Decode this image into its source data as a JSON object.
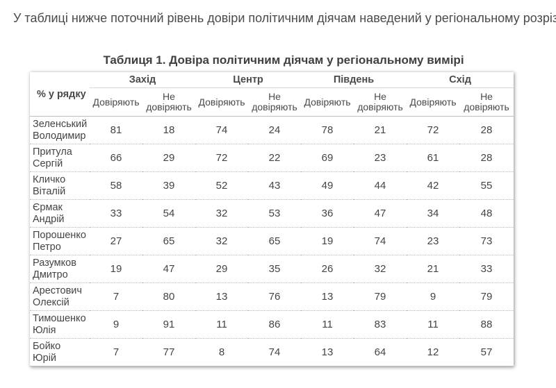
{
  "intro_text": "У таблиці нижче поточний рівень довіри політичним діячам наведений у регіональному розрізі.",
  "table": {
    "caption": "Таблиця 1. Довіра політичним діячам у регіональному вимірі",
    "corner_label": "% у рядку",
    "regions": [
      "Захід",
      "Центр",
      "Південь",
      "Схід"
    ],
    "sub_trust": "Довіряють",
    "sub_distrust_line1": "Не",
    "sub_distrust_line2": "довіряють",
    "rows": [
      {
        "first": "Зеленський",
        "last": "Володимир",
        "values": [
          "81",
          "18",
          "74",
          "24",
          "78",
          "21",
          "72",
          "28"
        ]
      },
      {
        "first": "Притула",
        "last": "Сергій",
        "values": [
          "66",
          "29",
          "72",
          "22",
          "69",
          "23",
          "61",
          "28"
        ]
      },
      {
        "first": "Кличко",
        "last": "Віталій",
        "values": [
          "58",
          "39",
          "52",
          "43",
          "49",
          "44",
          "42",
          "55"
        ]
      },
      {
        "first": "Єрмак",
        "last": "Андрій",
        "values": [
          "33",
          "54",
          "32",
          "53",
          "36",
          "47",
          "34",
          "48"
        ]
      },
      {
        "first": "Порошенко",
        "last": "Петро",
        "values": [
          "27",
          "65",
          "32",
          "65",
          "19",
          "74",
          "23",
          "73"
        ]
      },
      {
        "first": "Разумков",
        "last": "Дмитро",
        "values": [
          "19",
          "47",
          "29",
          "35",
          "26",
          "32",
          "21",
          "33"
        ]
      },
      {
        "first": "Арестович",
        "last": "Олексій",
        "values": [
          "7",
          "80",
          "13",
          "76",
          "13",
          "79",
          "9",
          "79"
        ]
      },
      {
        "first": "Тимошенко",
        "last": "Юлія",
        "values": [
          "9",
          "91",
          "11",
          "86",
          "11",
          "83",
          "11",
          "88"
        ]
      },
      {
        "first": "Бойко",
        "last": "Юрій",
        "values": [
          "7",
          "77",
          "8",
          "74",
          "13",
          "64",
          "12",
          "57"
        ]
      }
    ]
  }
}
